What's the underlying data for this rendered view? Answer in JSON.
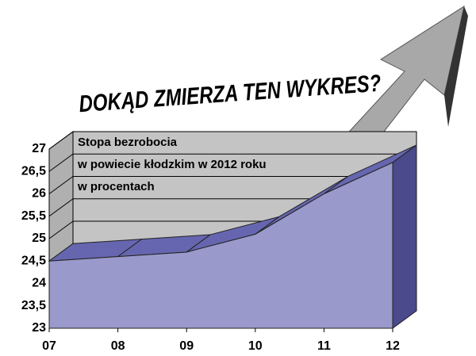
{
  "chart_data": {
    "type": "area3d",
    "title": "DOKĄD ZMIERZA TEN WYKRES?",
    "subtitle": [
      "Stopa bezrobocia",
      "w powiecie kłodzkim w 2012 roku",
      "w procentach"
    ],
    "categories": [
      "07",
      "08",
      "09",
      "10",
      "11",
      "12"
    ],
    "values": [
      24.5,
      24.6,
      24.7,
      25.1,
      26.0,
      26.7
    ],
    "color": "#9999cc",
    "ylim": [
      23,
      27
    ],
    "yticks": [
      23,
      {
        "value": 23.5,
        "label": "23,5"
      },
      24,
      {
        "value": 24.5,
        "label": "24,5"
      },
      25,
      {
        "value": 25.5,
        "label": "25,5"
      },
      26,
      {
        "value": 26.5,
        "label": "26,5"
      },
      27
    ],
    "grid": true
  }
}
